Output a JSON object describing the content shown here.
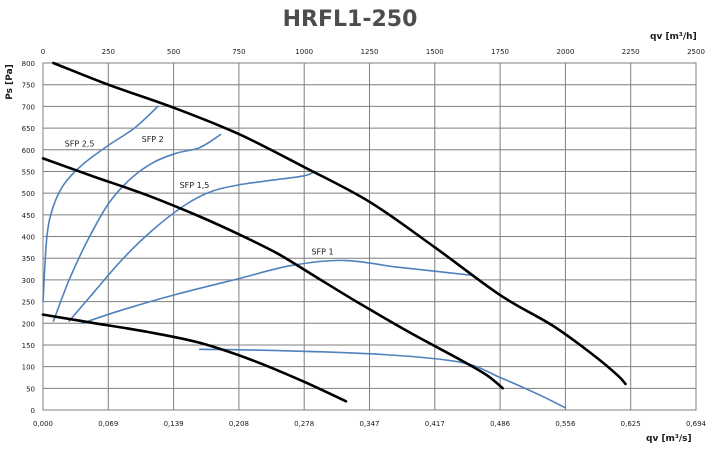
{
  "chart_data": {
    "type": "line",
    "title": "HRFL1-250",
    "ylabel": "Ps [Pa]",
    "x_top_label": "qv [m³/h]",
    "x_bottom_label": "qv [m³/s]",
    "xlim_m3h": [
      0,
      2500
    ],
    "ylim": [
      0,
      800
    ],
    "grid": true,
    "top_ticks": [
      "0",
      "250",
      "500",
      "750",
      "1000",
      "1250",
      "1500",
      "1750",
      "2000",
      "2250",
      "2500"
    ],
    "bottom_ticks": [
      "0,000",
      "0,069",
      "0,139",
      "0,208",
      "0,278",
      "0,347",
      "0,417",
      "0,486",
      "0,556",
      "0,625",
      "0,694"
    ],
    "y_ticks": [
      "0",
      "50",
      "100",
      "150",
      "200",
      "250",
      "300",
      "350",
      "400",
      "450",
      "500",
      "550",
      "600",
      "650",
      "700",
      "750",
      "800"
    ],
    "fan_curves": [
      {
        "x": [
          40,
          250,
          500,
          750,
          1000,
          1250,
          1500,
          1750,
          1950,
          2100,
          2200,
          2230
        ],
        "y": [
          800,
          750,
          697,
          636,
          560,
          480,
          375,
          265,
          195,
          130,
          80,
          60
        ]
      },
      {
        "x": [
          0,
          200,
          400,
          600,
          750,
          900,
          1050,
          1200,
          1400,
          1600,
          1700,
          1760
        ],
        "y": [
          580,
          537,
          495,
          446,
          405,
          360,
          305,
          250,
          180,
          115,
          80,
          50
        ]
      },
      {
        "x": [
          0,
          200,
          400,
          600,
          800,
          1000,
          1160
        ],
        "y": [
          220,
          200,
          180,
          155,
          115,
          65,
          20
        ]
      }
    ],
    "sfp_curves": [
      {
        "label": "SFP 2,5",
        "x": [
          0,
          15,
          40,
          80,
          150,
          250,
          350,
          440
        ],
        "y": [
          250,
          400,
          470,
          520,
          565,
          610,
          650,
          700
        ]
      },
      {
        "label": "SFP 2",
        "x": [
          40,
          100,
          170,
          250,
          330,
          420,
          510,
          600,
          680
        ],
        "y": [
          205,
          300,
          390,
          475,
          530,
          570,
          592,
          605,
          635
        ]
      },
      {
        "label": "SFP 1,5",
        "x": [
          100,
          200,
          300,
          420,
          550,
          650,
          760,
          880,
          1000,
          1040
        ],
        "y": [
          205,
          275,
          345,
          415,
          475,
          505,
          520,
          530,
          540,
          550
        ]
      },
      {
        "label": "SFP 1",
        "x": [
          150,
          300,
          500,
          750,
          950,
          1150,
          1350,
          1500,
          1650
        ],
        "y": [
          200,
          230,
          265,
          303,
          333,
          345,
          330,
          320,
          310
        ]
      },
      {
        "label": "",
        "x": [
          600,
          900,
          1300,
          1600,
          1750,
          1900,
          2000
        ],
        "y": [
          140,
          137,
          128,
          110,
          75,
          35,
          5
        ]
      }
    ],
    "sfp_labels": [
      {
        "text": "SFP 2,5",
        "x": 140,
        "y": 608
      },
      {
        "text": "SFP 2",
        "x": 420,
        "y": 618
      },
      {
        "text": "SFP 1,5",
        "x": 580,
        "y": 512
      },
      {
        "text": "SFP 1",
        "x": 1070,
        "y": 358
      }
    ]
  }
}
